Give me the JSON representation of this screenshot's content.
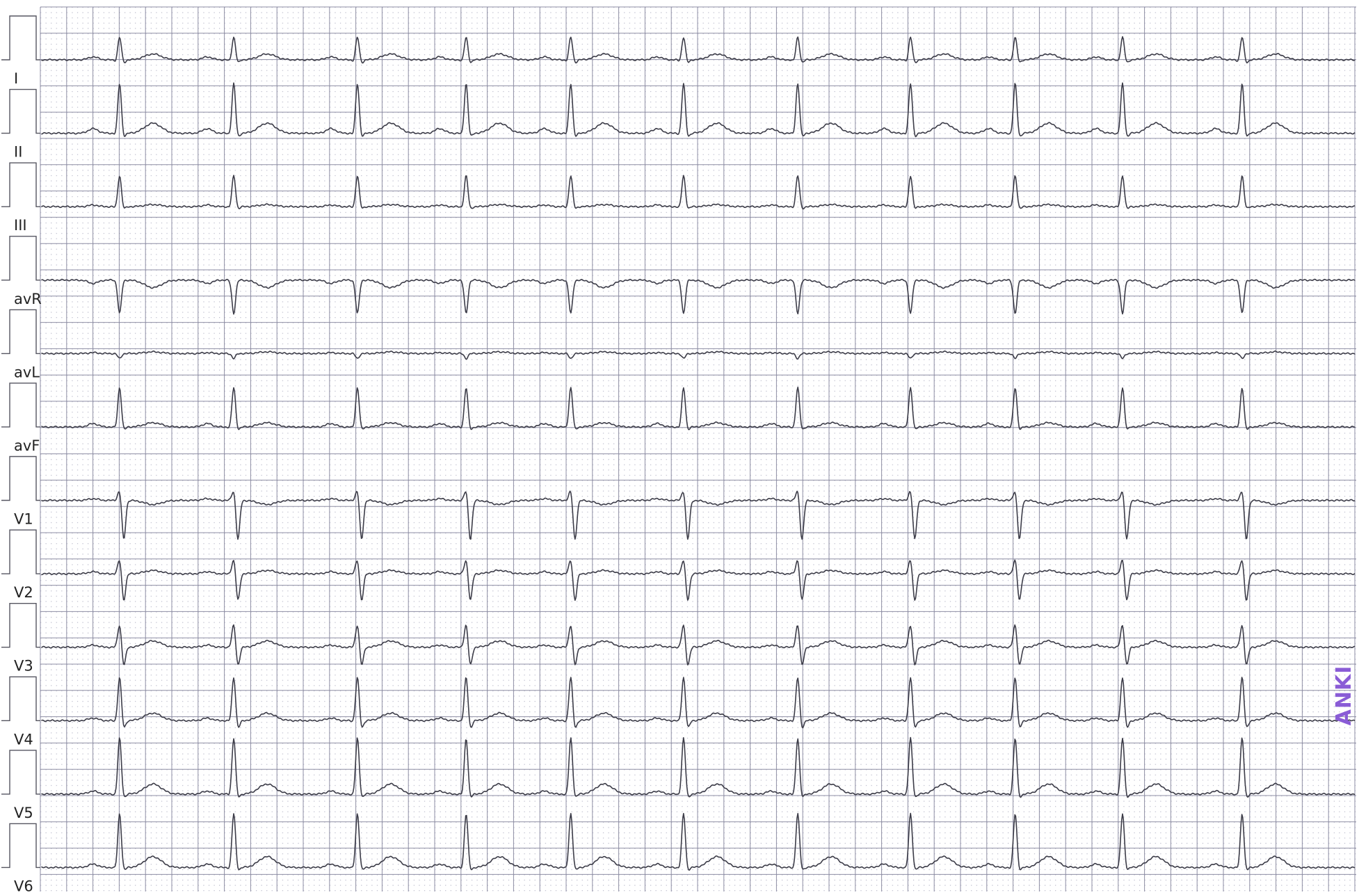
{
  "chart_data": {
    "type": "line",
    "title": "",
    "xlabel": "",
    "ylabel": "",
    "grid": true,
    "colors": {
      "grid_major": "#8e8ea4",
      "grid_minor_dots": "#b9b9ca",
      "trace": "#3c3c48",
      "stamp": "#8a5cd6"
    },
    "beat_positions": [
      0.088,
      0.172,
      0.263,
      0.343,
      0.42,
      0.503,
      0.587,
      0.67,
      0.747,
      0.826,
      0.914
    ],
    "leads": [
      {
        "name": "I",
        "r": 0.55,
        "q": 0.05,
        "s": 0.08,
        "t": 0.14,
        "p": 0.07
      },
      {
        "name": "II",
        "r": 1.2,
        "q": 0.05,
        "s": 0.1,
        "t": 0.24,
        "p": 0.11
      },
      {
        "name": "III",
        "r": 0.75,
        "q": 0.04,
        "s": 0.06,
        "t": 0.05,
        "p": 0.04
      },
      {
        "name": "avR",
        "r": -0.8,
        "q": 0.0,
        "s": 0.0,
        "t": -0.18,
        "p": -0.08
      },
      {
        "name": "avL",
        "r": -0.12,
        "q": 0.0,
        "s": 0.0,
        "t": 0.04,
        "p": 0.02
      },
      {
        "name": "avF",
        "r": 0.95,
        "q": 0.04,
        "s": 0.08,
        "t": 0.1,
        "p": 0.08
      },
      {
        "name": "V1",
        "r": 0.25,
        "q": 0.0,
        "s": 0.95,
        "t": -0.1,
        "p": 0.04
      },
      {
        "name": "V2",
        "r": 0.35,
        "q": 0.0,
        "s": 0.65,
        "t": 0.08,
        "p": 0.05
      },
      {
        "name": "V3",
        "r": 0.55,
        "q": 0.0,
        "s": 0.45,
        "t": 0.15,
        "p": 0.05
      },
      {
        "name": "V4",
        "r": 1.05,
        "q": 0.04,
        "s": 0.2,
        "t": 0.18,
        "p": 0.06
      },
      {
        "name": "V5",
        "r": 1.35,
        "q": 0.05,
        "s": 0.1,
        "t": 0.24,
        "p": 0.07
      },
      {
        "name": "V6",
        "r": 1.3,
        "q": 0.05,
        "s": 0.08,
        "t": 0.26,
        "p": 0.08
      }
    ]
  },
  "stamp": {
    "text": "ANKI"
  }
}
